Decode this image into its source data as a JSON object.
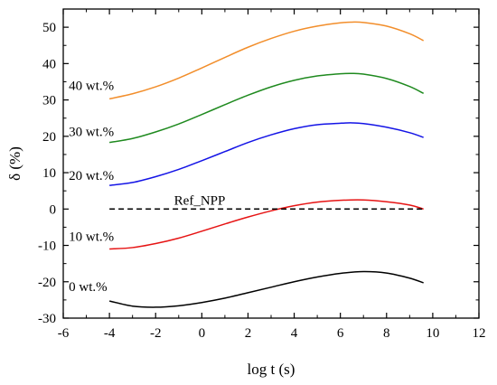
{
  "chart_data": {
    "type": "line",
    "title": "",
    "xlabel": "log t (s)",
    "ylabel": "δ (%)",
    "xlim": [
      -6,
      12
    ],
    "ylim": [
      -30,
      55
    ],
    "xticks": [
      -6,
      -4,
      -2,
      0,
      2,
      4,
      6,
      8,
      10,
      12
    ],
    "yticks": [
      -30,
      -20,
      -10,
      0,
      10,
      20,
      30,
      40,
      50
    ],
    "grid": false,
    "legend": "none",
    "series": [
      {
        "label": "40 wt.%",
        "color": "#f28e2b",
        "x": [
          -4,
          -3,
          -2,
          -1,
          0,
          1,
          2,
          3,
          4,
          5,
          6,
          6.5,
          7,
          8,
          9,
          9.6
        ],
        "y": [
          30.3,
          31.7,
          33.6,
          36.0,
          38.8,
          41.7,
          44.5,
          46.9,
          48.9,
          50.3,
          51.2,
          51.4,
          51.3,
          50.3,
          48.2,
          46.3
        ]
      },
      {
        "label": "30 wt.%",
        "color": "#1f8a1f",
        "x": [
          -4,
          -3,
          -2,
          -1,
          0,
          1,
          2,
          3,
          4,
          5,
          6,
          6.5,
          7,
          8,
          9,
          9.6
        ],
        "y": [
          18.3,
          19.4,
          21.2,
          23.4,
          26.0,
          28.7,
          31.3,
          33.6,
          35.4,
          36.6,
          37.2,
          37.3,
          37.1,
          35.9,
          33.7,
          31.8
        ]
      },
      {
        "label": "20 wt.%",
        "color": "#1414e6",
        "x": [
          -4,
          -3,
          -2,
          -1,
          0,
          1,
          2,
          3,
          4,
          5,
          6,
          6.5,
          7,
          8,
          9,
          9.6
        ],
        "y": [
          6.5,
          7.3,
          8.9,
          10.9,
          13.3,
          15.8,
          18.3,
          20.4,
          22.1,
          23.2,
          23.6,
          23.7,
          23.5,
          22.5,
          21.0,
          19.7
        ]
      },
      {
        "label": "10 wt.%",
        "color": "#e61414",
        "x": [
          -4,
          -3,
          -2,
          -1,
          0,
          1,
          2,
          3,
          4,
          5,
          6,
          7,
          8,
          9,
          9.6
        ],
        "y": [
          -11.0,
          -10.6,
          -9.5,
          -8.0,
          -6.1,
          -4.1,
          -2.2,
          -0.5,
          0.9,
          1.9,
          2.4,
          2.5,
          2.0,
          1.1,
          0.0
        ]
      },
      {
        "label": "0 wt.%",
        "color": "#000000",
        "x": [
          -4,
          -3,
          -2,
          -1,
          0,
          1,
          2,
          3,
          4,
          5,
          6,
          7,
          8,
          9,
          9.6
        ],
        "y": [
          -25.3,
          -26.7,
          -27.0,
          -26.6,
          -25.7,
          -24.5,
          -23.0,
          -21.5,
          -20.0,
          -18.7,
          -17.7,
          -17.2,
          -17.6,
          -19.0,
          -20.3
        ]
      },
      {
        "label": "Ref_NPP",
        "color": "#000000",
        "dashed": true,
        "x": [
          -4,
          9.6
        ],
        "y": [
          0,
          0
        ]
      }
    ],
    "annotations": [
      {
        "text": "40 wt.%",
        "x": -4.0,
        "y": 34.0
      },
      {
        "text": "30 wt.%",
        "x": -4.0,
        "y": 21.3
      },
      {
        "text": "20 wt.%",
        "x": -4.0,
        "y": 9.3
      },
      {
        "text": "Ref_NPP",
        "x": -1.2,
        "y": 2.4
      },
      {
        "text": "10 wt.%",
        "x": -4.0,
        "y": -7.5
      },
      {
        "text": "0 wt.%",
        "x": -4.0,
        "y": -21.3
      }
    ]
  }
}
